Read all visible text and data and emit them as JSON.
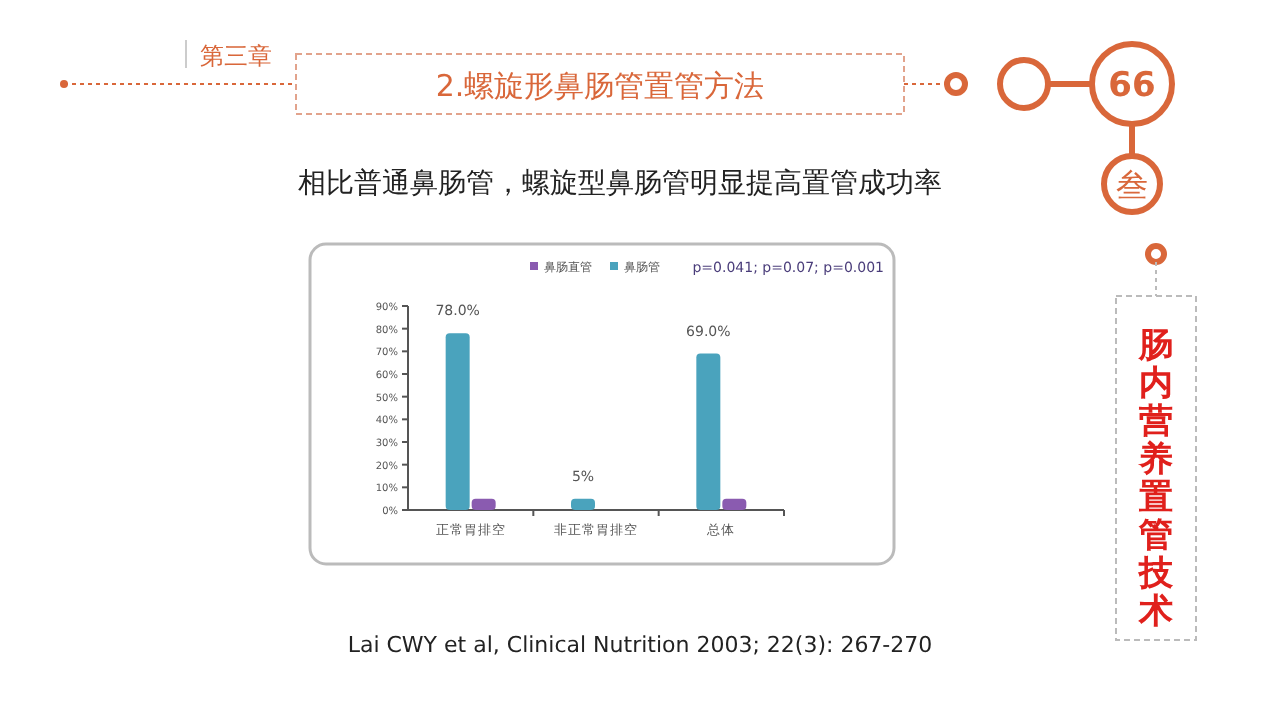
{
  "chart_data": {
    "type": "bar",
    "title": "2.螺旋形鼻肠管置管方法",
    "subtitle": "相比普通鼻肠管，螺旋型鼻肠管明显提高置管成功率",
    "categories": [
      "正常胃排空",
      "非正常胃排空",
      "总体"
    ],
    "series": [
      {
        "name": "鼻肠管",
        "color": "#4aa3bd",
        "values": [
          78.0,
          5,
          69.0
        ],
        "value_labels": [
          "78.0%",
          "5%",
          "69.0%"
        ]
      },
      {
        "name": "鼻肠直管",
        "color": "#8a5bb0",
        "values": [
          5,
          0,
          5
        ]
      }
    ],
    "ylim": [
      0,
      90
    ],
    "yticks": [
      {
        "value": 0,
        "label": "0%"
      },
      {
        "value": 10,
        "label": "10%"
      },
      {
        "value": 20,
        "label": "20%"
      },
      {
        "value": 30,
        "label": "30%"
      },
      {
        "value": 40,
        "label": "40%"
      },
      {
        "value": 50,
        "label": "50%"
      },
      {
        "value": 60,
        "label": "60%"
      },
      {
        "value": 70,
        "label": "70%"
      },
      {
        "value": 80,
        "label": "80%"
      },
      {
        "value": 90,
        "label": "90%"
      }
    ],
    "grid": false,
    "legend": "top",
    "annotations": [
      "第三章",
      "66",
      "叁",
      "肠内营养置管技术",
      "p=0.041; p=0.07; p=0.001",
      "Lai CWY et al, Clinical Nutrition 2003; 22(3): 267-270"
    ]
  }
}
